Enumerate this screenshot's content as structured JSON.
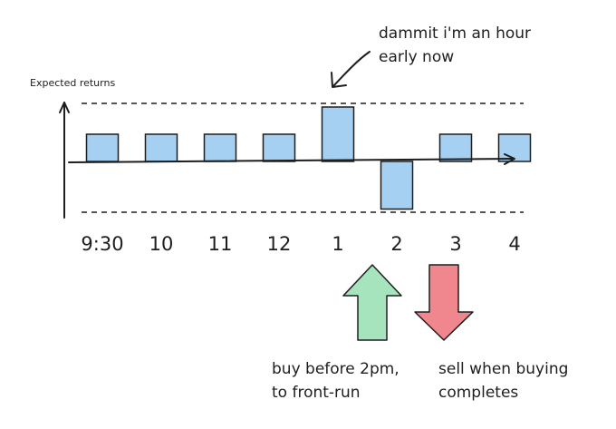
{
  "chart_data": {
    "type": "bar",
    "ylabel": "Expected returns",
    "xlabel": "",
    "categories": [
      "9:30",
      "10",
      "11",
      "12",
      "1",
      "2",
      "3",
      "4"
    ],
    "values": [
      1,
      1,
      1,
      1,
      2,
      -1.75,
      1,
      1
    ],
    "ylim": [
      -2,
      2
    ],
    "reference_lines": [
      2,
      -2
    ],
    "bar_color": "#a5d0f1",
    "grid": false
  },
  "annotations": {
    "top_note_lines": [
      "dammit i'm an hour",
      "early now"
    ],
    "buy_note_lines": [
      "buy before 2pm,",
      "to front-run"
    ],
    "sell_note_lines": [
      "sell when buying",
      "completes"
    ],
    "buy_arrow_color": "#a6e4bd",
    "sell_arrow_color": "#f0878e"
  }
}
